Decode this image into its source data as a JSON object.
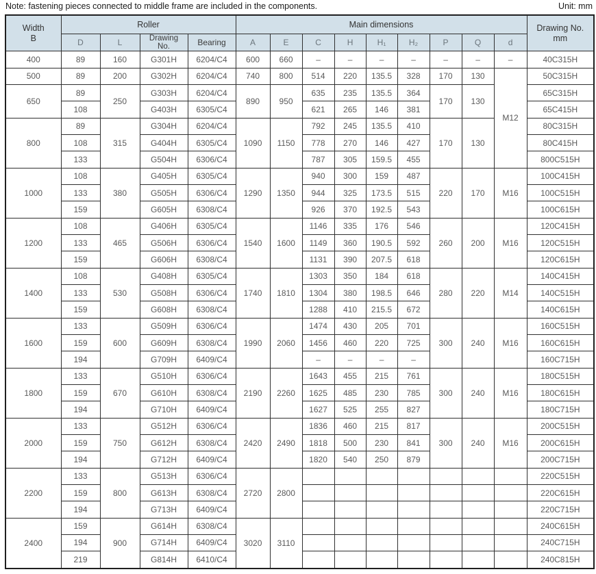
{
  "note": "Note: fastening pieces connected to middle frame are included in the components.",
  "unit_label": "Unit: mm",
  "colors": {
    "header_bg": "#d2e0e9",
    "border": "#2f2f2f",
    "data_text": "#595959",
    "header_letter": "#6b757c",
    "header_text": "#333333"
  },
  "header": {
    "width_b": "Width\nB",
    "roller": "Roller",
    "main_dimensions": "Main dimensions",
    "drawing_no_mm": "Drawing No.\nmm",
    "sub": [
      "D",
      "L",
      "Drawing\nNo.",
      "Bearing",
      "A",
      "E",
      "C",
      "H",
      "H₁",
      "H₂",
      "P",
      "Q",
      "d"
    ]
  },
  "table": {
    "rows": [
      [
        "400",
        "89",
        "160",
        "G301H",
        "6204/C4",
        "600",
        "660",
        "–",
        "–",
        "–",
        "–",
        "–",
        "–",
        "–",
        "40C315H"
      ],
      [
        "500",
        "89",
        "200",
        "G302H",
        "6204/C4",
        "740",
        "800",
        "514",
        "220",
        "135.5",
        "328",
        "170",
        "130",
        [
          "M12",
          6
        ],
        "50C315H"
      ],
      [
        [
          "650",
          2
        ],
        "89",
        [
          "250",
          2
        ],
        "G303H",
        "6204/C4",
        [
          "890",
          2
        ],
        [
          "950",
          2
        ],
        "635",
        "235",
        "135.5",
        "364",
        [
          "170",
          2
        ],
        [
          "130",
          2
        ],
        "65C315H"
      ],
      [
        "108",
        "G403H",
        "6305/C4",
        "621",
        "265",
        "146",
        "381",
        "65C415H"
      ],
      [
        [
          "800",
          3
        ],
        "89",
        [
          "315",
          3
        ],
        "G304H",
        "6204/C4",
        [
          "1090",
          3
        ],
        [
          "1150",
          3
        ],
        "792",
        "245",
        "135.5",
        "410",
        [
          "170",
          3
        ],
        [
          "130",
          3
        ],
        "80C315H"
      ],
      [
        "108",
        "G404H",
        "6305/C4",
        "778",
        "270",
        "146",
        "427",
        "80C415H"
      ],
      [
        "133",
        "G504H",
        "6306/C4",
        "787",
        "305",
        "159.5",
        "455",
        "800C515H"
      ],
      [
        [
          "1000",
          3
        ],
        "108",
        [
          "380",
          3
        ],
        "G405H",
        "6305/C4",
        [
          "1290",
          3
        ],
        [
          "1350",
          3
        ],
        "940",
        "300",
        "159",
        "487",
        [
          "220",
          3
        ],
        [
          "170",
          3
        ],
        [
          "M16",
          3
        ],
        "100C415H"
      ],
      [
        "133",
        "G505H",
        "6306/C4",
        "944",
        "325",
        "173.5",
        "515",
        "100C515H"
      ],
      [
        "159",
        "G605H",
        "6308/C4",
        "926",
        "370",
        "192.5",
        "543",
        "100C615H"
      ],
      [
        [
          "1200",
          3
        ],
        "108",
        [
          "465",
          3
        ],
        "G406H",
        "6305/C4",
        [
          "1540",
          3
        ],
        [
          "1600",
          3
        ],
        "1146",
        "335",
        "176",
        "546",
        [
          "260",
          3
        ],
        [
          "200",
          3
        ],
        [
          "M16",
          3
        ],
        "120C415H"
      ],
      [
        "133",
        "G506H",
        "6306/C4",
        "1149",
        "360",
        "190.5",
        "592",
        "120C515H"
      ],
      [
        "159",
        "G606H",
        "6308/C4",
        "1131",
        "390",
        "207.5",
        "618",
        "120C615H"
      ],
      [
        [
          "1400",
          3
        ],
        "108",
        [
          "530",
          3
        ],
        "G408H",
        "6305/C4",
        [
          "1740",
          3
        ],
        [
          "1810",
          3
        ],
        "1303",
        "350",
        "184",
        "618",
        [
          "280",
          3
        ],
        [
          "220",
          3
        ],
        [
          "M14",
          3
        ],
        "140C415H"
      ],
      [
        "133",
        "G508H",
        "6306/C4",
        "1304",
        "380",
        "198.5",
        "646",
        "140C515H"
      ],
      [
        "159",
        "G608H",
        "6308/C4",
        "1288",
        "410",
        "215.5",
        "672",
        "140C615H"
      ],
      [
        [
          "1600",
          3
        ],
        "133",
        [
          "600",
          3
        ],
        "G509H",
        "6306/C4",
        [
          "1990",
          3
        ],
        [
          "2060",
          3
        ],
        "1474",
        "430",
        "205",
        "701",
        [
          "300",
          3
        ],
        [
          "240",
          3
        ],
        [
          "M16",
          3
        ],
        "160C515H"
      ],
      [
        "159",
        "G609H",
        "6308/C4",
        "1456",
        "460",
        "220",
        "725",
        "160C615H"
      ],
      [
        "194",
        "G709H",
        "6409/C4",
        "–",
        "–",
        "–",
        "–",
        "160C715H"
      ],
      [
        [
          "1800",
          3
        ],
        "133",
        [
          "670",
          3
        ],
        "G510H",
        "6306/C4",
        [
          "2190",
          3
        ],
        [
          "2260",
          3
        ],
        "1643",
        "455",
        "215",
        "761",
        [
          "300",
          3
        ],
        [
          "240",
          3
        ],
        [
          "M16",
          3
        ],
        "180C515H"
      ],
      [
        "159",
        "G610H",
        "6308/C4",
        "1625",
        "485",
        "230",
        "785",
        "180C615H"
      ],
      [
        "194",
        "G710H",
        "6409/C4",
        "1627",
        "525",
        "255",
        "827",
        "180C715H"
      ],
      [
        [
          "2000",
          3
        ],
        "133",
        [
          "750",
          3
        ],
        "G512H",
        "6306/C4",
        [
          "2420",
          3
        ],
        [
          "2490",
          3
        ],
        "1836",
        "460",
        "215",
        "817",
        [
          "300",
          3
        ],
        [
          "240",
          3
        ],
        [
          "M16",
          3
        ],
        "200C515H"
      ],
      [
        "159",
        "G612H",
        "6308/C4",
        "1818",
        "500",
        "230",
        "841",
        "200C615H"
      ],
      [
        "194",
        "G712H",
        "6409/C4",
        "1820",
        "540",
        "250",
        "879",
        "200C715H"
      ],
      [
        [
          "2200",
          3
        ],
        "133",
        [
          "800",
          3
        ],
        "G513H",
        "6306/C4",
        [
          "2720",
          3
        ],
        [
          "2800",
          3
        ],
        "",
        "",
        "",
        "",
        "",
        "",
        "",
        "220C515H"
      ],
      [
        "159",
        "G613H",
        "6308/C4",
        "",
        "",
        "",
        "",
        "",
        "",
        "",
        "220C615H"
      ],
      [
        "194",
        "G713H",
        "6409/C4",
        "",
        "",
        "",
        "",
        "",
        "",
        "",
        "220C715H"
      ],
      [
        [
          "2400",
          3
        ],
        "159",
        [
          "900",
          3
        ],
        "G614H",
        "6308/C4",
        [
          "3020",
          3
        ],
        [
          "3110",
          3
        ],
        "",
        "",
        "",
        "",
        "",
        "",
        "",
        "240C615H"
      ],
      [
        "194",
        "G714H",
        "6409/C4",
        "",
        "",
        "",
        "",
        "",
        "",
        "",
        "240C715H"
      ],
      [
        "219",
        "G814H",
        "6410/C4",
        "",
        "",
        "",
        "",
        "",
        "",
        "",
        "240C815H"
      ]
    ]
  }
}
